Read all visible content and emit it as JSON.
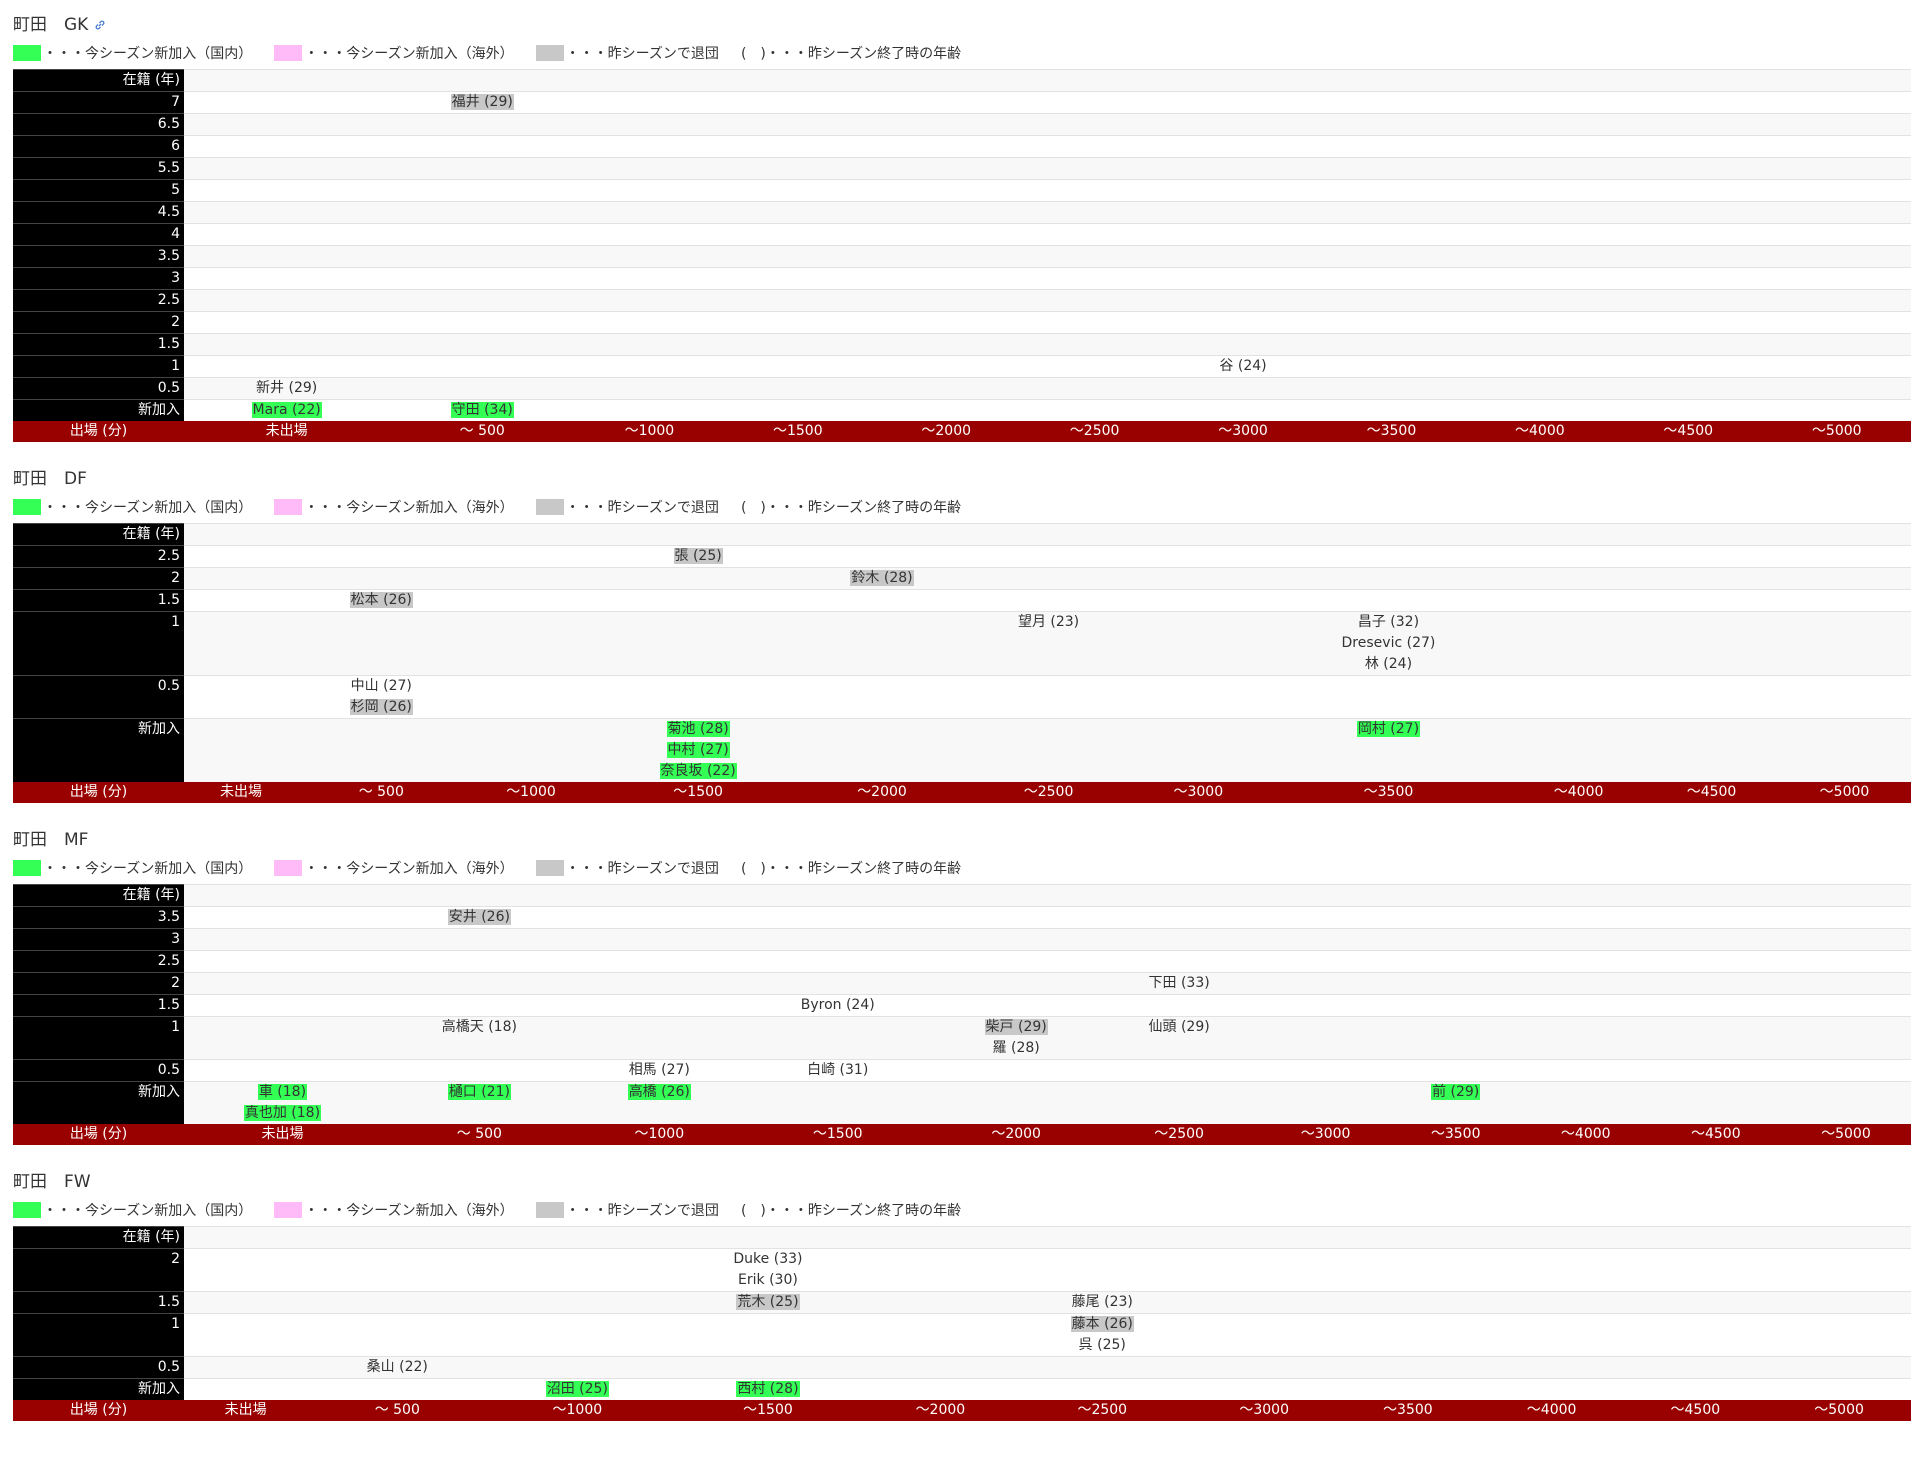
{
  "legend": [
    {
      "color": "#33ff55",
      "text": "・・・今シーズン新加入（国内）"
    },
    {
      "color": "#ffbbf7",
      "text": "・・・今シーズン新加入（海外）"
    },
    {
      "color": "#c8c8c8",
      "text": "・・・昨シーズンで退団"
    },
    {
      "text": "(　)・・・昨シーズン終了時の年齢"
    }
  ],
  "sections": [
    {
      "title": "町田　GK",
      "table": {
        "header": "在籍 (年)",
        "rows": [
          {
            "label": "7",
            "cells": [
              [],
              [
                {
                  "text": "福井 (29)",
                  "color": "#c8c8c8"
                }
              ],
              [],
              [],
              [],
              [],
              [],
              [],
              [],
              [],
              []
            ]
          },
          {
            "label": "6.5",
            "cells": [
              [],
              [],
              [],
              [],
              [],
              [],
              [],
              [],
              [],
              [],
              []
            ]
          },
          {
            "label": "6",
            "cells": [
              [],
              [],
              [],
              [],
              [],
              [],
              [],
              [],
              [],
              [],
              []
            ]
          },
          {
            "label": "5.5",
            "cells": [
              [],
              [],
              [],
              [],
              [],
              [],
              [],
              [],
              [],
              [],
              []
            ]
          },
          {
            "label": "5",
            "cells": [
              [],
              [],
              [],
              [],
              [],
              [],
              [],
              [],
              [],
              [],
              []
            ]
          },
          {
            "label": "4.5",
            "cells": [
              [],
              [],
              [],
              [],
              [],
              [],
              [],
              [],
              [],
              [],
              []
            ]
          },
          {
            "label": "4",
            "cells": [
              [],
              [],
              [],
              [],
              [],
              [],
              [],
              [],
              [],
              [],
              []
            ]
          },
          {
            "label": "3.5",
            "cells": [
              [],
              [],
              [],
              [],
              [],
              [],
              [],
              [],
              [],
              [],
              []
            ]
          },
          {
            "label": "3",
            "cells": [
              [],
              [],
              [],
              [],
              [],
              [],
              [],
              [],
              [],
              [],
              []
            ]
          },
          {
            "label": "2.5",
            "cells": [
              [],
              [],
              [],
              [],
              [],
              [],
              [],
              [],
              [],
              [],
              []
            ]
          },
          {
            "label": "2",
            "cells": [
              [],
              [],
              [],
              [],
              [],
              [],
              [],
              [],
              [],
              [],
              []
            ]
          },
          {
            "label": "1.5",
            "cells": [
              [],
              [],
              [],
              [],
              [],
              [],
              [],
              [],
              [],
              [],
              []
            ]
          },
          {
            "label": "1",
            "cells": [
              [],
              [],
              [],
              [],
              [],
              [],
              [
                {
                  "text": "谷 (24)"
                }
              ],
              [],
              [],
              [],
              []
            ]
          },
          {
            "label": "0.5",
            "cells": [
              [
                {
                  "text": "新井 (29)"
                }
              ],
              [],
              [],
              [],
              [],
              [],
              [],
              [],
              [],
              [],
              []
            ]
          },
          {
            "label": "新加入",
            "cells": [
              [
                {
                  "text": "Mara (22)",
                  "color": "#33ff55"
                }
              ],
              [
                {
                  "text": "守田 (34)",
                  "color": "#33ff55"
                }
              ],
              [],
              [],
              [],
              [],
              [],
              [],
              [],
              [],
              []
            ]
          }
        ],
        "footer": {
          "label": "出場 (分)",
          "columns": [
            "未出場",
            "～ 500",
            "～1000",
            "～1500",
            "～2000",
            "～2500",
            "～3000",
            "～3500",
            "～4000",
            "～4500",
            "～5000"
          ]
        }
      }
    },
    {
      "title": "町田　DF",
      "table": {
        "header": "在籍 (年)",
        "rows": [
          {
            "label": "2.5",
            "cells": [
              [],
              [],
              [],
              [
                {
                  "text": "張 (25)",
                  "color": "#c8c8c8"
                }
              ],
              [],
              [],
              [],
              [],
              [],
              [],
              []
            ]
          },
          {
            "label": "2",
            "cells": [
              [],
              [],
              [],
              [],
              [
                {
                  "text": "鈴木 (28)",
                  "color": "#c8c8c8"
                }
              ],
              [],
              [],
              [],
              [],
              [],
              []
            ]
          },
          {
            "label": "1.5",
            "cells": [
              [],
              [
                {
                  "text": "松本 (26)",
                  "color": "#c8c8c8"
                }
              ],
              [],
              [],
              [],
              [],
              [],
              [],
              [],
              [],
              []
            ]
          },
          {
            "label": "1",
            "cells": [
              [],
              [],
              [],
              [],
              [],
              [
                {
                  "text": "望月 (23)"
                }
              ],
              [],
              [
                {
                  "text": "昌子 (32)"
                },
                {
                  "text": "Dresevic (27)"
                },
                {
                  "text": "林 (24)"
                }
              ],
              [],
              [],
              []
            ]
          },
          {
            "label": "0.5",
            "cells": [
              [],
              [
                {
                  "text": "中山 (27)"
                },
                {
                  "text": "杉岡 (26)",
                  "color": "#c8c8c8"
                }
              ],
              [],
              [],
              [],
              [],
              [],
              [],
              [],
              [],
              []
            ]
          },
          {
            "label": "新加入",
            "cells": [
              [],
              [],
              [],
              [
                {
                  "text": "菊池 (28)",
                  "color": "#33ff55"
                },
                {
                  "text": "中村 (27)",
                  "color": "#33ff55"
                },
                {
                  "text": "奈良坂 (22)",
                  "color": "#33ff55"
                }
              ],
              [],
              [],
              [],
              [
                {
                  "text": "岡村 (27)",
                  "color": "#33ff55"
                }
              ],
              [],
              [],
              []
            ]
          }
        ],
        "footer": {
          "label": "出場 (分)",
          "columns": [
            "未出場",
            "～ 500",
            "～1000",
            "～1500",
            "～2000",
            "～2500",
            "～3000",
            "～3500",
            "～4000",
            "～4500",
            "～5000"
          ]
        }
      }
    },
    {
      "title": "町田　MF",
      "table": {
        "header": "在籍 (年)",
        "rows": [
          {
            "label": "3.5",
            "cells": [
              [],
              [
                {
                  "text": "安井 (26)",
                  "color": "#c8c8c8"
                }
              ],
              [],
              [],
              [],
              [],
              [],
              [],
              [],
              [],
              []
            ]
          },
          {
            "label": "3",
            "cells": [
              [],
              [],
              [],
              [],
              [],
              [],
              [],
              [],
              [],
              [],
              []
            ]
          },
          {
            "label": "2.5",
            "cells": [
              [],
              [],
              [],
              [],
              [],
              [],
              [],
              [],
              [],
              [],
              []
            ]
          },
          {
            "label": "2",
            "cells": [
              [],
              [],
              [],
              [],
              [],
              [
                {
                  "text": "下田 (33)"
                }
              ],
              [],
              [],
              [],
              [],
              []
            ]
          },
          {
            "label": "1.5",
            "cells": [
              [],
              [],
              [],
              [
                {
                  "text": "Byron (24)"
                }
              ],
              [],
              [],
              [],
              [],
              [],
              [],
              []
            ]
          },
          {
            "label": "1",
            "cells": [
              [],
              [
                {
                  "text": "高橋天 (18)"
                }
              ],
              [],
              [],
              [
                {
                  "text": "柴戸 (29)",
                  "color": "#c8c8c8"
                },
                {
                  "text": "羅 (28)"
                }
              ],
              [
                {
                  "text": "仙頭 (29)"
                }
              ],
              [],
              [],
              [],
              [],
              []
            ]
          },
          {
            "label": "0.5",
            "cells": [
              [],
              [],
              [
                {
                  "text": "相馬 (27)"
                }
              ],
              [
                {
                  "text": "白崎 (31)"
                }
              ],
              [],
              [],
              [],
              [],
              [],
              [],
              []
            ]
          },
          {
            "label": "新加入",
            "cells": [
              [
                {
                  "text": "車 (18)",
                  "color": "#33ff55"
                },
                {
                  "text": "真也加 (18)",
                  "color": "#33ff55"
                }
              ],
              [
                {
                  "text": "樋口 (21)",
                  "color": "#33ff55"
                }
              ],
              [
                {
                  "text": "高橋 (26)",
                  "color": "#33ff55"
                }
              ],
              [],
              [],
              [],
              [],
              [
                {
                  "text": "前 (29)",
                  "color": "#33ff55"
                }
              ],
              [],
              [],
              []
            ]
          }
        ],
        "footer": {
          "label": "出場 (分)",
          "columns": [
            "未出場",
            "～ 500",
            "～1000",
            "～1500",
            "～2000",
            "～2500",
            "～3000",
            "～3500",
            "～4000",
            "～4500",
            "～5000"
          ]
        }
      }
    },
    {
      "title": "町田　FW",
      "table": {
        "header": "在籍 (年)",
        "rows": [
          {
            "label": "2",
            "cells": [
              [],
              [],
              [],
              [
                {
                  "text": "Duke (33)"
                },
                {
                  "text": "Erik (30)"
                }
              ],
              [],
              [],
              [],
              [],
              [],
              [],
              []
            ]
          },
          {
            "label": "1.5",
            "cells": [
              [],
              [],
              [],
              [
                {
                  "text": "荒木 (25)",
                  "color": "#c8c8c8"
                }
              ],
              [],
              [
                {
                  "text": "藤尾 (23)"
                }
              ],
              [],
              [],
              [],
              [],
              []
            ]
          },
          {
            "label": "1",
            "cells": [
              [],
              [],
              [],
              [],
              [],
              [
                {
                  "text": "藤本 (26)",
                  "color": "#c8c8c8"
                },
                {
                  "text": "呉 (25)"
                }
              ],
              [],
              [],
              [],
              [],
              []
            ]
          },
          {
            "label": "0.5",
            "cells": [
              [],
              [
                {
                  "text": "桑山 (22)"
                }
              ],
              [],
              [],
              [],
              [],
              [],
              [],
              [],
              [],
              []
            ]
          },
          {
            "label": "新加入",
            "cells": [
              [],
              [],
              [
                {
                  "text": "沼田 (25)",
                  "color": "#33ff55"
                }
              ],
              [
                {
                  "text": "西村 (28)",
                  "color": "#33ff55"
                }
              ],
              [],
              [],
              [],
              [],
              [],
              [],
              []
            ]
          }
        ],
        "footer": {
          "label": "出場 (分)",
          "columns": [
            "未出場",
            "～ 500",
            "～1000",
            "～1500",
            "～2000",
            "～2500",
            "～3000",
            "～3500",
            "～4000",
            "～4500",
            "～5000"
          ]
        }
      }
    }
  ]
}
